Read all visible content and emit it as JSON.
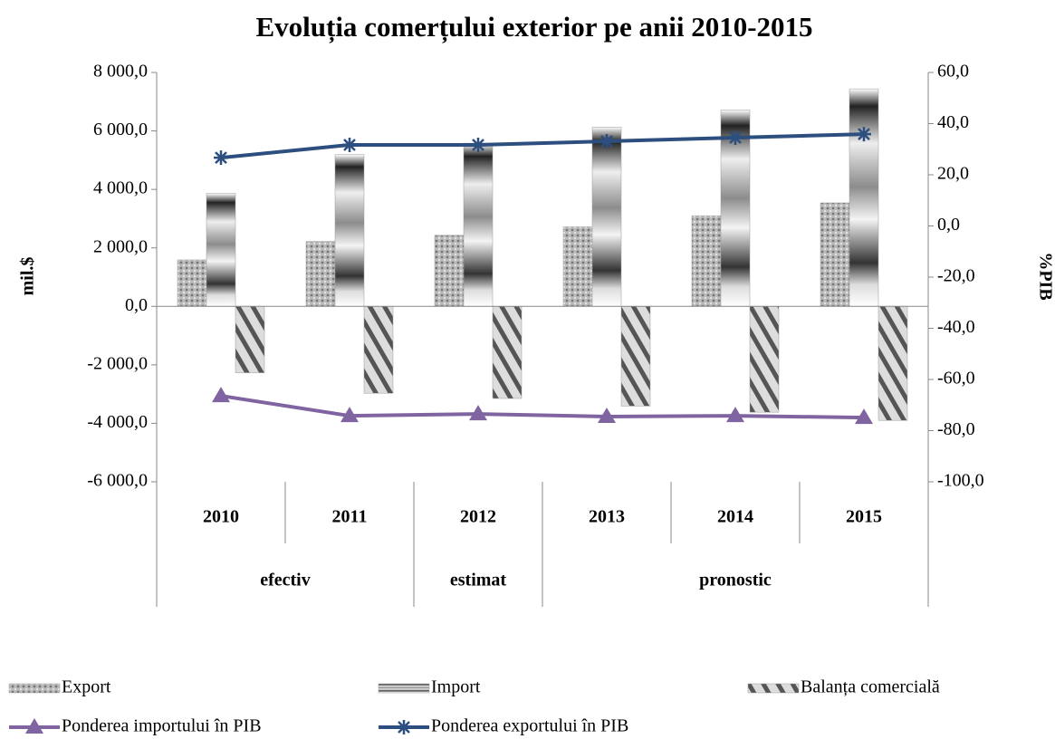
{
  "chart_data": {
    "type": "bar_line",
    "title": "Evoluția comerțului exterior pe anii 2010-2015",
    "y_label": "mil.$",
    "y2_label": "%PIB",
    "categories": [
      "2010",
      "2011",
      "2012",
      "2013",
      "2014",
      "2015"
    ],
    "category_groups": [
      "efectiv",
      "efectiv",
      "estimat",
      "pronostic",
      "pronostic",
      "pronostic"
    ],
    "ylim": [
      -6000,
      8000
    ],
    "yticks": [
      {
        "value": -6000,
        "label": "-6 000,0"
      },
      {
        "value": -4000,
        "label": "-4 000,0"
      },
      {
        "value": -2000,
        "label": "-2 000,0"
      },
      {
        "value": 0,
        "label": "0,0"
      },
      {
        "value": 2000,
        "label": "2 000,0"
      },
      {
        "value": 4000,
        "label": "4 000,0"
      },
      {
        "value": 6000,
        "label": "6 000,0"
      },
      {
        "value": 8000,
        "label": "8 000,0"
      }
    ],
    "y2lim": [
      -100,
      60
    ],
    "y2ticks": [
      {
        "value": -100,
        "label": "-100,0"
      },
      {
        "value": -80,
        "label": "-80,0"
      },
      {
        "value": -60,
        "label": "-60,0"
      },
      {
        "value": -40,
        "label": "-40,0"
      },
      {
        "value": -20,
        "label": "-20,0"
      },
      {
        "value": 0,
        "label": "0,0"
      },
      {
        "value": 20,
        "label": "20,0"
      },
      {
        "value": 40,
        "label": "40,0"
      },
      {
        "value": 60,
        "label": "60,0"
      }
    ],
    "series": [
      {
        "name": "Export",
        "type": "bar",
        "color": "#9a9a9a",
        "values": [
          1590,
          2220,
          2430,
          2720,
          3100,
          3540
        ]
      },
      {
        "name": "Import",
        "type": "bar",
        "color": "#8c8c8c",
        "values": [
          3860,
          5190,
          5580,
          6130,
          6720,
          7440
        ]
      },
      {
        "name": "Balanța comercială",
        "type": "bar",
        "color": "#a0a0a0",
        "values": [
          -2270,
          -2970,
          -3150,
          -3410,
          -3620,
          -3900
        ]
      },
      {
        "name": "Ponderea importului în PIB",
        "type": "line",
        "axis": "y2",
        "marker": "triangle",
        "color": "#8064a2",
        "values": [
          -66.4,
          -74.2,
          -73.5,
          -74.5,
          -74.2,
          -74.9
        ]
      },
      {
        "name": "Ponderea exportului în PIB",
        "type": "line",
        "axis": "y2",
        "marker": "star",
        "color": "#2c4f7f",
        "values": [
          26.7,
          31.7,
          31.7,
          33.1,
          34.5,
          35.9
        ]
      }
    ]
  }
}
